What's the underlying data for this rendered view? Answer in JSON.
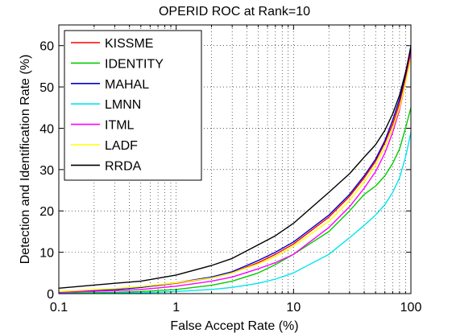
{
  "chart_data": {
    "type": "line",
    "title": "OPERID ROC at Rank=10",
    "xlabel": "False Accept Rate (%)",
    "ylabel": "Detection and Identification Rate (%)",
    "xscale": "log",
    "xlim": [
      0.1,
      100
    ],
    "ylim": [
      0,
      65
    ],
    "xticks": [
      0.1,
      1,
      10,
      100
    ],
    "xtick_labels": [
      "0.1",
      "1",
      "10",
      "100"
    ],
    "yticks": [
      0,
      10,
      20,
      30,
      40,
      50,
      60
    ],
    "ytick_labels": [
      "0",
      "10",
      "20",
      "30",
      "40",
      "50",
      "60"
    ],
    "grid": "dotted",
    "legend_position": "top-left",
    "series": [
      {
        "name": "KISSME",
        "color": "#ff0000",
        "x": [
          0.1,
          0.3,
          0.5,
          1,
          2,
          3,
          5,
          7,
          10,
          20,
          30,
          40,
          50,
          60,
          70,
          80,
          90,
          100
        ],
        "y": [
          0.4,
          1.0,
          1.5,
          2.5,
          3.8,
          5.0,
          7.5,
          9.5,
          12.0,
          18.5,
          23.5,
          28.0,
          32.0,
          36.5,
          41.0,
          46.0,
          52.0,
          59.0
        ]
      },
      {
        "name": "IDENTITY",
        "color": "#00cc00",
        "x": [
          0.1,
          0.3,
          0.5,
          1,
          2,
          3,
          5,
          7,
          10,
          20,
          30,
          40,
          50,
          60,
          70,
          80,
          90,
          100
        ],
        "y": [
          0.1,
          0.3,
          0.5,
          1.0,
          2.0,
          3.0,
          5.0,
          7.0,
          9.5,
          15.0,
          20.0,
          24.0,
          26.0,
          28.5,
          31.5,
          35.0,
          40.0,
          45.0
        ]
      },
      {
        "name": "MAHAL",
        "color": "#0000cc",
        "x": [
          0.1,
          0.3,
          0.5,
          1,
          2,
          3,
          5,
          7,
          10,
          20,
          30,
          40,
          50,
          60,
          70,
          80,
          90,
          100
        ],
        "y": [
          0.4,
          1.0,
          1.5,
          2.6,
          4.0,
          5.3,
          8.0,
          10.0,
          12.5,
          19.0,
          24.0,
          28.5,
          32.5,
          37.0,
          42.0,
          47.0,
          53.0,
          60.0
        ]
      },
      {
        "name": "LMNN",
        "color": "#00e5ee",
        "x": [
          0.1,
          0.3,
          0.5,
          1,
          2,
          3,
          5,
          7,
          10,
          20,
          30,
          40,
          50,
          60,
          70,
          80,
          90,
          100
        ],
        "y": [
          0.0,
          0.1,
          0.2,
          0.5,
          1.0,
          1.5,
          2.5,
          3.5,
          5.0,
          9.5,
          13.5,
          16.5,
          19.0,
          21.5,
          24.5,
          28.0,
          33.0,
          39.0
        ]
      },
      {
        "name": "ITML",
        "color": "#ff00ff",
        "x": [
          0.1,
          0.3,
          0.5,
          1,
          2,
          3,
          5,
          7,
          10,
          20,
          30,
          40,
          50,
          60,
          70,
          80,
          90,
          100
        ],
        "y": [
          0.3,
          0.7,
          1.0,
          1.8,
          3.0,
          4.0,
          6.0,
          7.5,
          9.5,
          16.0,
          21.0,
          25.5,
          29.5,
          34.0,
          39.0,
          44.5,
          51.0,
          58.0
        ]
      },
      {
        "name": "LADF",
        "color": "#ffff00",
        "x": [
          0.1,
          0.3,
          0.5,
          1,
          2,
          3,
          5,
          7,
          10,
          20,
          30,
          40,
          50,
          60,
          70,
          80,
          90,
          100
        ],
        "y": [
          0.5,
          1.2,
          1.7,
          2.6,
          3.8,
          5.0,
          7.2,
          9.0,
          11.5,
          17.5,
          22.5,
          27.0,
          31.0,
          35.5,
          40.0,
          45.0,
          51.0,
          57.0
        ]
      },
      {
        "name": "RRDA",
        "color": "#000000",
        "x": [
          0.1,
          0.3,
          0.5,
          1,
          2,
          3,
          5,
          7,
          10,
          20,
          30,
          40,
          50,
          60,
          70,
          80,
          90,
          100
        ],
        "y": [
          1.3,
          2.5,
          3.0,
          4.5,
          6.8,
          8.5,
          11.8,
          14.0,
          17.0,
          24.5,
          29.0,
          33.0,
          36.0,
          39.5,
          43.5,
          48.0,
          53.5,
          59.5
        ]
      }
    ]
  }
}
